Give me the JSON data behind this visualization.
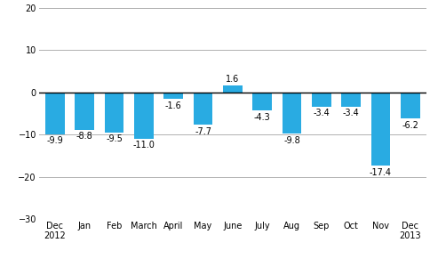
{
  "categories": [
    "Dec\n2012",
    "Jan",
    "Feb",
    "March",
    "April",
    "May",
    "June",
    "July",
    "Aug",
    "Sep",
    "Oct",
    "Nov",
    "Dec\n2013"
  ],
  "values": [
    -9.9,
    -8.8,
    -9.5,
    -11.0,
    -1.6,
    -7.7,
    1.6,
    -4.3,
    -9.8,
    -3.4,
    -3.4,
    -17.4,
    -6.2
  ],
  "bar_color": "#29abe2",
  "ylim": [
    -30,
    20
  ],
  "yticks": [
    -30,
    -20,
    -10,
    0,
    10,
    20
  ],
  "label_fontsize": 7.0,
  "tick_fontsize": 7.0,
  "background_color": "#ffffff",
  "grid_color": "#b0b0b0",
  "bar_width": 0.65
}
